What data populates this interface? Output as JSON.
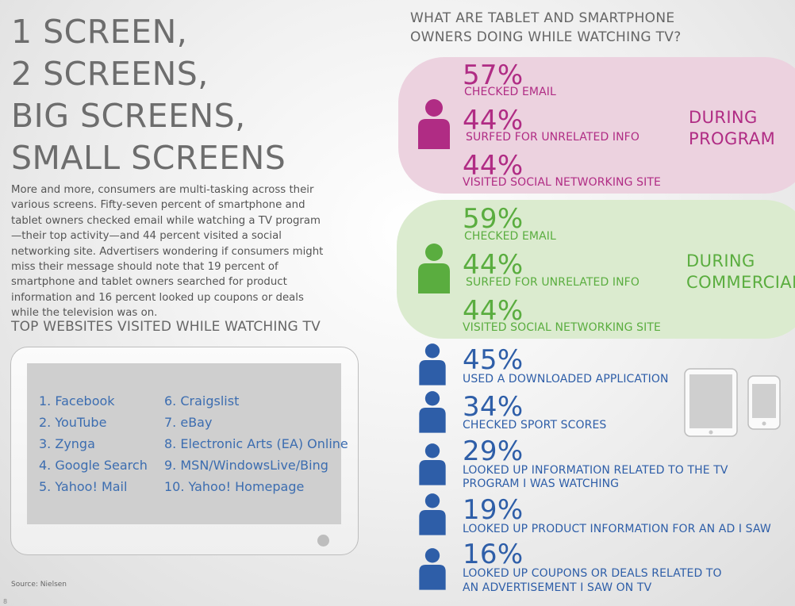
{
  "title_lines": [
    "1 SCREEN,",
    "2 SCREENS,",
    "BIG SCREENS,",
    "SMALL SCREENS"
  ],
  "intro": "More and more, consumers are multi-tasking across their various screens. Fifty-seven percent of smartphone and tablet owners checked email while watching a TV program—their top activity—and 44 percent visited a social networking site. Advertisers wondering if consumers might miss their message should note that 19 percent of smartphone and tablet owners searched for product information and 16 percent looked up coupons or deals while the television was on.",
  "websites": {
    "heading": "TOP WEBSITES VISITED WHILE WATCHING TV",
    "items": [
      "1. Facebook",
      "2. YouTube",
      "3. Zynga",
      "4. Google Search",
      "5. Yahoo! Mail",
      "6. Craigslist",
      "7. eBay",
      "8. Electronic Arts (EA) Online",
      "9. MSN/WindowsLive/Bing",
      "10. Yahoo! Homepage"
    ]
  },
  "source": "Source: Nielsen",
  "page_number": "8",
  "right_heading": [
    "WHAT ARE TABLET AND SMARTPHONE",
    "OWNERS DOING WHILE WATCHING TV?"
  ],
  "during_program": {
    "label_lines": [
      "DURING",
      "PROGRAM"
    ],
    "color": "#b02c84",
    "stats": [
      {
        "pct": "57%",
        "label": "CHECKED EMAIL"
      },
      {
        "pct": "44%",
        "label": "SURFED FOR UNRELATED INFO"
      },
      {
        "pct": "44%",
        "label": "VISITED SOCIAL NETWORKING SITE"
      }
    ]
  },
  "during_commercial": {
    "label_lines": [
      "DURING",
      "COMMERCIAL"
    ],
    "color": "#5aad3f",
    "stats": [
      {
        "pct": "59%",
        "label": "CHECKED EMAIL"
      },
      {
        "pct": "44%",
        "label": "SURFED FOR UNRELATED INFO"
      },
      {
        "pct": "44%",
        "label": "VISITED SOCIAL NETWORKING SITE"
      }
    ]
  },
  "other_activities": {
    "color": "#2e5ea8",
    "stats": [
      {
        "pct": "45%",
        "label_lines": [
          "USED A DOWNLOADED APPLICATION"
        ]
      },
      {
        "pct": "34%",
        "label_lines": [
          "CHECKED SPORT SCORES"
        ]
      },
      {
        "pct": "29%",
        "label_lines": [
          "LOOKED UP INFORMATION RELATED TO THE TV",
          "PROGRAM I WAS WATCHING"
        ]
      },
      {
        "pct": "19%",
        "label_lines": [
          "LOOKED UP PRODUCT INFORMATION FOR AN AD I SAW"
        ]
      },
      {
        "pct": "16%",
        "label_lines": [
          "LOOKED UP COUPONS OR DEALS RELATED TO",
          "AN ADVERTISEMENT I SAW ON TV"
        ]
      }
    ]
  },
  "icons": [
    "person-icon",
    "tablet-icon",
    "smartphone-icon"
  ]
}
